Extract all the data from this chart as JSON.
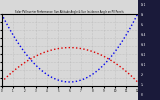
{
  "title": "Solar PV/Inverter Performance  Sun Altitude Angle & Sun Incidence Angle on PV Panels",
  "blue_color": "#0000ee",
  "red_color": "#dd0000",
  "bg_color": "#d8d8d8",
  "right_panel_color": "#1a1a3a",
  "grid_color": "#aaaaaa",
  "right_labels": [
    "D:1",
    "8:",
    "6:",
    "H:4",
    "H:3",
    "H:2",
    "H:1",
    "2:",
    "1:",
    "0"
  ],
  "figsize": [
    1.6,
    1.0
  ],
  "dpi": 100
}
